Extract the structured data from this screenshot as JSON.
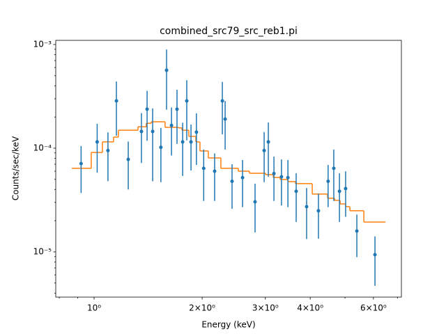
{
  "chart_data": {
    "type": "scatter",
    "title": "combined_src79_src_reb1.pi",
    "xlabel": "Energy (keV)",
    "ylabel": "Counts/sec/keV",
    "xscale": "log",
    "yscale": "log",
    "color": "#1f77b4",
    "x": [
      0.92,
      1.02,
      1.093,
      1.154,
      1.245,
      1.355,
      1.405,
      1.456,
      1.535,
      1.592,
      1.643,
      1.702,
      1.765,
      1.812,
      1.862,
      1.928,
      2.02,
      2.167,
      2.277,
      2.318,
      2.423,
      2.592,
      2.808,
      2.977,
      3.058,
      3.17,
      3.327,
      3.467,
      3.656,
      3.909,
      4.217,
      4.487,
      4.653,
      4.826,
      5.02,
      5.395,
      6.06
    ],
    "values": [
      7.1e-05,
      0.000115,
      9.5e-05,
      0.000286,
      7.8e-05,
      0.000145,
      0.000238,
      0.000145,
      0.000102,
      0.000565,
      0.000166,
      0.000238,
      0.000115,
      0.000286,
      0.000115,
      0.000143,
      6.4e-05,
      6e-05,
      0.000286,
      0.000191,
      4.8e-05,
      5.2e-05,
      3.04e-05,
      9.5e-05,
      0.000115,
      5.7e-05,
      5.3e-05,
      5.2e-05,
      3.84e-05,
      2.73e-05,
      2.49e-05,
      4.8e-05,
      6.4e-05,
      3.84e-05,
      4.08e-05,
      1.59e-05,
      9.4e-06
    ],
    "errors": [
      3.4e-05,
      5.7e-05,
      4.7e-05,
      0.000154,
      3.8e-05,
      7.3e-05,
      0.00012,
      9.7e-05,
      5.5e-05,
      0.00033,
      8.1e-05,
      0.000128,
      6.1e-05,
      0.000167,
      5.4e-05,
      7.4e-05,
      3.3e-05,
      2.9e-05,
      0.00015,
      9.4e-05,
      2.2e-05,
      2.5e-05,
      1.5e-05,
      4.8e-05,
      6.2e-05,
      2.6e-05,
      2.5e-05,
      2.5e-05,
      1.9e-05,
      1.4e-05,
      1.15e-05,
      2.1e-05,
      3.3e-05,
      1.9e-05,
      1.9e-05,
      7e-06,
      4.7e-06
    ],
    "model": {
      "type": "step",
      "color": "#ff7f0e",
      "bins": [
        0.867,
        0.982,
        1.055,
        1.133,
        1.169,
        1.325,
        1.398,
        1.443,
        1.577,
        1.718,
        1.757,
        1.836,
        1.921,
        1.972,
        2.081,
        2.255,
        2.522,
        2.709,
        3.004,
        3.156,
        3.299,
        3.467,
        3.639,
        4.053,
        4.472,
        4.677,
        4.846,
        5.02,
        5.16,
        5.643,
        6.483
      ],
      "values": [
        6.4e-05,
        9.1e-05,
        0.000115,
        0.000128,
        0.000149,
        0.000161,
        0.000174,
        0.00018,
        0.000159,
        0.000157,
        0.000149,
        0.00013,
        0.000115,
        9.4e-05,
        8.05e-05,
        6.4e-05,
        6e-05,
        5.73e-05,
        5.56e-05,
        5.22e-05,
        4.99e-05,
        4.76e-05,
        4.55e-05,
        3.61e-05,
        3.29e-05,
        3.14e-05,
        2.9e-05,
        2.73e-05,
        2.49e-05,
        1.94e-05
      ]
    },
    "xlim": [
      0.782,
      7.18
    ],
    "ylim": [
      3.66e-06,
      0.001097
    ],
    "xticks": [
      {
        "value": 1,
        "label": "10⁰"
      },
      {
        "value": 2,
        "label": "2×10⁰"
      },
      {
        "value": 3,
        "label": "3×10⁰"
      },
      {
        "value": 4,
        "label": "4×10⁰"
      },
      {
        "value": 6,
        "label": "6×10⁰"
      }
    ],
    "xminorticks": [
      0.8,
      0.9,
      5,
      7
    ],
    "yticks": [
      {
        "value": 1e-05,
        "label": "10⁻⁵"
      },
      {
        "value": 0.0001,
        "label": "10⁻⁴"
      },
      {
        "value": 0.001,
        "label": "10⁻³"
      }
    ],
    "yminorticks": [
      4e-06,
      5e-06,
      6e-06,
      7e-06,
      8e-06,
      9e-06,
      2e-05,
      3e-05,
      4e-05,
      5e-05,
      6e-05,
      7e-05,
      8e-05,
      9e-05,
      0.0002,
      0.0003,
      0.0004,
      0.0005,
      0.0006,
      0.0007,
      0.0008,
      0.0009
    ]
  }
}
